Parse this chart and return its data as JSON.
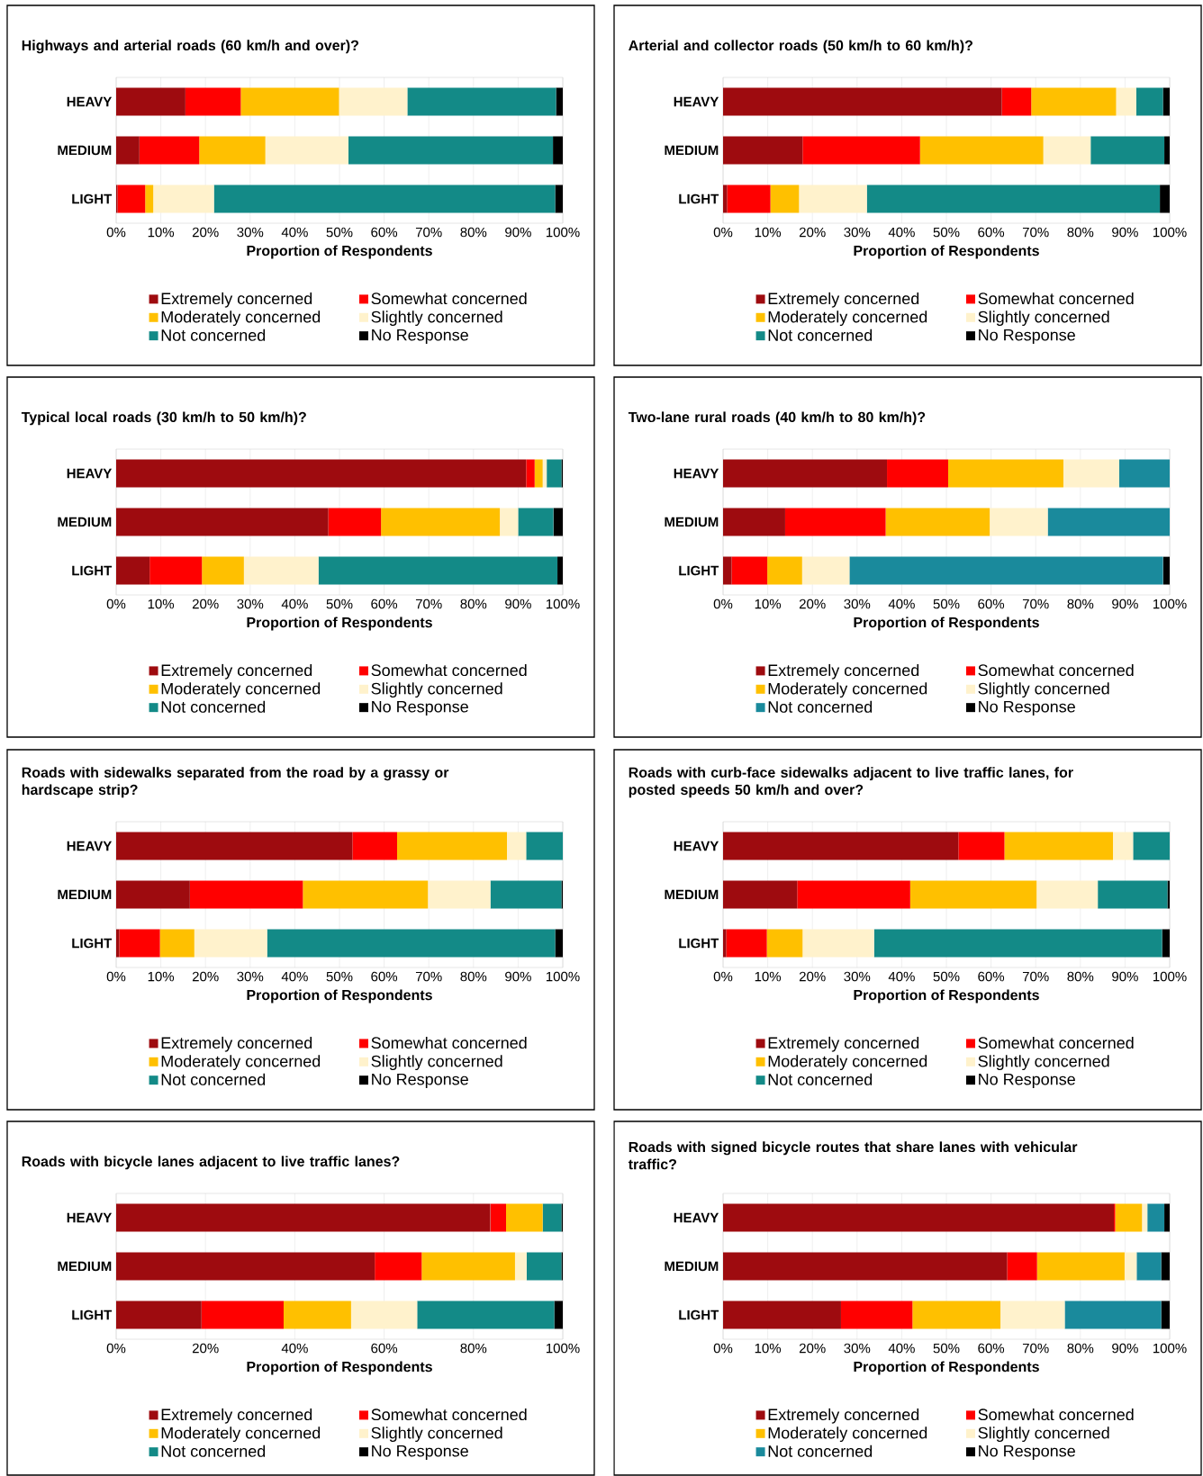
{
  "chart_data": [
    {
      "type": "bar",
      "orientation": "horizontal",
      "stacked": true,
      "title": "Highways and arterial roads (60 km/h and over)?",
      "categories": [
        "HEAVY",
        "MEDIUM",
        "LIGHT"
      ],
      "xlabel": "Proportion of Respondents",
      "xlim": [
        0,
        100
      ],
      "xticks": [
        {
          "value": 0,
          "label": "0%"
        },
        {
          "value": 10,
          "label": "10%"
        },
        {
          "value": 20,
          "label": "20%"
        },
        {
          "value": 30,
          "label": "30%"
        },
        {
          "value": 40,
          "label": "40%"
        },
        {
          "value": 50,
          "label": "50%"
        },
        {
          "value": 60,
          "label": "60%"
        },
        {
          "value": 70,
          "label": "70%"
        },
        {
          "value": 80,
          "label": "80%"
        },
        {
          "value": 90,
          "label": "90%"
        },
        {
          "value": 100,
          "label": "100%"
        }
      ],
      "grid": "x",
      "legend": "bottom",
      "series": [
        {
          "name": "Extremely concerned",
          "color": "#9e0b0f",
          "values": [
            15.5,
            5.2,
            0.3
          ]
        },
        {
          "name": "Somewhat concerned",
          "color": "#ff0000",
          "values": [
            12.4,
            13.4,
            6.2
          ]
        },
        {
          "name": "Moderately concerned",
          "color": "#ffc000",
          "values": [
            22,
            14.8,
            1.8
          ]
        },
        {
          "name": "Slightly concerned",
          "color": "#fff2cc",
          "values": [
            15.3,
            18.6,
            13.6
          ]
        },
        {
          "name": "Not concerned",
          "color": "#138a87",
          "values": [
            33.3,
            45.8,
            76.4
          ]
        },
        {
          "name": "No Response",
          "color": "#000000",
          "values": [
            1.5,
            2.2,
            1.7
          ]
        }
      ]
    },
    {
      "type": "bar",
      "orientation": "horizontal",
      "stacked": true,
      "title": "Arterial and collector roads (50 km/h to 60 km/h)?",
      "categories": [
        "HEAVY",
        "MEDIUM",
        "LIGHT"
      ],
      "xlabel": "Proportion of Respondents",
      "xlim": [
        0,
        100
      ],
      "xticks": [
        {
          "value": 0,
          "label": "0%"
        },
        {
          "value": 10,
          "label": "10%"
        },
        {
          "value": 20,
          "label": "20%"
        },
        {
          "value": 30,
          "label": "30%"
        },
        {
          "value": 40,
          "label": "40%"
        },
        {
          "value": 50,
          "label": "50%"
        },
        {
          "value": 60,
          "label": "60%"
        },
        {
          "value": 70,
          "label": "70%"
        },
        {
          "value": 80,
          "label": "80%"
        },
        {
          "value": 90,
          "label": "90%"
        },
        {
          "value": 100,
          "label": "100%"
        }
      ],
      "grid": "x",
      "legend": "bottom",
      "series": [
        {
          "name": "Extremely concerned",
          "color": "#9e0b0f",
          "values": [
            62.4,
            17.8,
            0.9
          ]
        },
        {
          "name": "Somewhat concerned",
          "color": "#ff0000",
          "values": [
            6.6,
            26.3,
            9.7
          ]
        },
        {
          "name": "Moderately concerned",
          "color": "#ffc000",
          "values": [
            19,
            27.6,
            6.4
          ]
        },
        {
          "name": "Slightly concerned",
          "color": "#fff2cc",
          "values": [
            4.5,
            10.6,
            15.2
          ]
        },
        {
          "name": "Not concerned",
          "color": "#138a87",
          "values": [
            6,
            16.5,
            65.6
          ]
        },
        {
          "name": "No Response",
          "color": "#000000",
          "values": [
            1.5,
            1.2,
            2.2
          ]
        }
      ]
    },
    {
      "type": "bar",
      "orientation": "horizontal",
      "stacked": true,
      "title": "Typical local roads (30 km/h to 50 km/h)?",
      "categories": [
        "HEAVY",
        "MEDIUM",
        "LIGHT"
      ],
      "xlabel": "Proportion of Respondents",
      "xlim": [
        0,
        100
      ],
      "xticks": [
        {
          "value": 0,
          "label": "0%"
        },
        {
          "value": 10,
          "label": "10%"
        },
        {
          "value": 20,
          "label": "20%"
        },
        {
          "value": 30,
          "label": "30%"
        },
        {
          "value": 40,
          "label": "40%"
        },
        {
          "value": 50,
          "label": "50%"
        },
        {
          "value": 60,
          "label": "60%"
        },
        {
          "value": 70,
          "label": "70%"
        },
        {
          "value": 80,
          "label": "80%"
        },
        {
          "value": 90,
          "label": "90%"
        },
        {
          "value": 100,
          "label": "100%"
        }
      ],
      "grid": "x",
      "legend": "bottom",
      "series": [
        {
          "name": "Extremely concerned",
          "color": "#9e0b0f",
          "values": [
            91.8,
            47.5,
            7.5
          ]
        },
        {
          "name": "Somewhat concerned",
          "color": "#ff0000",
          "values": [
            1.9,
            11.8,
            11.7
          ]
        },
        {
          "name": "Moderately concerned",
          "color": "#ffc000",
          "values": [
            1.8,
            26.6,
            9.4
          ]
        },
        {
          "name": "Slightly concerned",
          "color": "#fff2cc",
          "values": [
            0.9,
            4.1,
            16.7
          ]
        },
        {
          "name": "Not concerned",
          "color": "#138a87",
          "values": [
            3.3,
            7.9,
            53.5
          ]
        },
        {
          "name": "No Response",
          "color": "#000000",
          "values": [
            0.3,
            2.1,
            1.2
          ]
        }
      ]
    },
    {
      "type": "bar",
      "orientation": "horizontal",
      "stacked": true,
      "title": "Two-lane rural roads (40 km/h to 80 km/h)?",
      "categories": [
        "HEAVY",
        "MEDIUM",
        "LIGHT"
      ],
      "xlabel": "Proportion of Respondents",
      "xlim": [
        0,
        100
      ],
      "xticks": [
        {
          "value": 0,
          "label": "0%"
        },
        {
          "value": 10,
          "label": "10%"
        },
        {
          "value": 20,
          "label": "20%"
        },
        {
          "value": 30,
          "label": "30%"
        },
        {
          "value": 40,
          "label": "40%"
        },
        {
          "value": 50,
          "label": "50%"
        },
        {
          "value": 60,
          "label": "60%"
        },
        {
          "value": 70,
          "label": "70%"
        },
        {
          "value": 80,
          "label": "80%"
        },
        {
          "value": 90,
          "label": "90%"
        },
        {
          "value": 100,
          "label": "100%"
        }
      ],
      "grid": "x",
      "legend": "bottom",
      "series": [
        {
          "name": "Extremely concerned",
          "color": "#9e0b0f",
          "values": [
            36.7,
            13.9,
            1.9
          ]
        },
        {
          "name": "Somewhat concerned",
          "color": "#ff0000",
          "values": [
            13.7,
            22.5,
            8
          ]
        },
        {
          "name": "Moderately concerned",
          "color": "#ffc000",
          "values": [
            25.8,
            23.3,
            7.8
          ]
        },
        {
          "name": "Slightly concerned",
          "color": "#fff2cc",
          "values": [
            12.5,
            13,
            10.6
          ]
        },
        {
          "name": "Not concerned",
          "color": "#1a8a9c",
          "values": [
            11.3,
            27.3,
            70.2
          ]
        },
        {
          "name": "No Response",
          "color": "#000000",
          "values": [
            0,
            0,
            1.5
          ]
        }
      ]
    },
    {
      "type": "bar",
      "orientation": "horizontal",
      "stacked": true,
      "title": "Roads with sidewalks separated from the road by a grassy or hardscape strip?",
      "categories": [
        "HEAVY",
        "MEDIUM",
        "LIGHT"
      ],
      "xlabel": "Proportion of Respondents",
      "xlim": [
        0,
        100
      ],
      "xticks": [
        {
          "value": 0,
          "label": "0%"
        },
        {
          "value": 10,
          "label": "10%"
        },
        {
          "value": 20,
          "label": "20%"
        },
        {
          "value": 30,
          "label": "30%"
        },
        {
          "value": 40,
          "label": "40%"
        },
        {
          "value": 50,
          "label": "50%"
        },
        {
          "value": 60,
          "label": "60%"
        },
        {
          "value": 70,
          "label": "70%"
        },
        {
          "value": 80,
          "label": "80%"
        },
        {
          "value": 90,
          "label": "90%"
        },
        {
          "value": 100,
          "label": "100%"
        }
      ],
      "grid": "x",
      "legend": "bottom",
      "series": [
        {
          "name": "Extremely concerned",
          "color": "#9e0b0f",
          "values": [
            52.9,
            16.5,
            0.7
          ]
        },
        {
          "name": "Somewhat concerned",
          "color": "#ff0000",
          "values": [
            10,
            25.3,
            9.1
          ]
        },
        {
          "name": "Moderately concerned",
          "color": "#ffc000",
          "values": [
            24.6,
            28,
            7.7
          ]
        },
        {
          "name": "Slightly concerned",
          "color": "#fff2cc",
          "values": [
            4.3,
            14,
            16.3
          ]
        },
        {
          "name": "Not concerned",
          "color": "#138a87",
          "values": [
            8.2,
            15.9,
            64.5
          ]
        },
        {
          "name": "No Response",
          "color": "#000000",
          "values": [
            0,
            0.3,
            1.7
          ]
        }
      ]
    },
    {
      "type": "bar",
      "orientation": "horizontal",
      "stacked": true,
      "title": "Roads with curb-face sidewalks adjacent to live traffic lanes, for posted speeds 50 km/h and over?",
      "categories": [
        "HEAVY",
        "MEDIUM",
        "LIGHT"
      ],
      "xlabel": "Proportion of Respondents",
      "xlim": [
        0,
        100
      ],
      "xticks": [
        {
          "value": 0,
          "label": "0%"
        },
        {
          "value": 10,
          "label": "10%"
        },
        {
          "value": 20,
          "label": "20%"
        },
        {
          "value": 30,
          "label": "30%"
        },
        {
          "value": 40,
          "label": "40%"
        },
        {
          "value": 50,
          "label": "50%"
        },
        {
          "value": 60,
          "label": "60%"
        },
        {
          "value": 70,
          "label": "70%"
        },
        {
          "value": 80,
          "label": "80%"
        },
        {
          "value": 90,
          "label": "90%"
        },
        {
          "value": 100,
          "label": "100%"
        }
      ],
      "grid": "x",
      "legend": "bottom",
      "series": [
        {
          "name": "Extremely concerned",
          "color": "#9e0b0f",
          "values": [
            52.7,
            16.6,
            0.7
          ]
        },
        {
          "name": "Somewhat concerned",
          "color": "#ff0000",
          "values": [
            10.3,
            25.3,
            9.1
          ]
        },
        {
          "name": "Moderately concerned",
          "color": "#ffc000",
          "values": [
            24.3,
            28.3,
            8
          ]
        },
        {
          "name": "Slightly concerned",
          "color": "#fff2cc",
          "values": [
            4.5,
            13.7,
            16
          ]
        },
        {
          "name": "Not concerned",
          "color": "#138a87",
          "values": [
            8.2,
            15.6,
            64.5
          ]
        },
        {
          "name": "No Response",
          "color": "#000000",
          "values": [
            0,
            0.5,
            1.7
          ]
        }
      ]
    },
    {
      "type": "bar",
      "orientation": "horizontal",
      "stacked": true,
      "title": "Roads with bicycle lanes adjacent to live traffic lanes?",
      "categories": [
        "HEAVY",
        "MEDIUM",
        "LIGHT"
      ],
      "xlabel": "Proportion of Respondents",
      "xlim": [
        0,
        100
      ],
      "xticks": [
        {
          "value": 0,
          "label": "0%"
        },
        {
          "value": 20,
          "label": "20%"
        },
        {
          "value": 40,
          "label": "40%"
        },
        {
          "value": 60,
          "label": "60%"
        },
        {
          "value": 80,
          "label": "80%"
        },
        {
          "value": 100,
          "label": "100%"
        }
      ],
      "grid": "x",
      "legend": "bottom",
      "series": [
        {
          "name": "Extremely concerned",
          "color": "#9e0b0f",
          "values": [
            83.8,
            57.9,
            19.1
          ]
        },
        {
          "name": "Somewhat concerned",
          "color": "#ff0000",
          "values": [
            3.5,
            10.5,
            18.4
          ]
        },
        {
          "name": "Moderately concerned",
          "color": "#ffc000",
          "values": [
            8.2,
            20.9,
            15.1
          ]
        },
        {
          "name": "Slightly concerned",
          "color": "#fff2cc",
          "values": [
            null,
            2.6,
            14.8
          ]
        },
        {
          "name": "Not concerned",
          "color": "#138a87",
          "values": [
            4.2,
            7.8,
            30.7
          ]
        },
        {
          "name": "No Response",
          "color": "#000000",
          "values": [
            0.3,
            0.3,
            1.9
          ]
        }
      ]
    },
    {
      "type": "bar",
      "orientation": "horizontal",
      "stacked": true,
      "title": "Roads with signed bicycle routes that share lanes with vehicular traffic?",
      "categories": [
        "HEAVY",
        "MEDIUM",
        "LIGHT"
      ],
      "xlabel": "Proportion of Respondents",
      "xlim": [
        0,
        100
      ],
      "xticks": [
        {
          "value": 0,
          "label": "0%"
        },
        {
          "value": 10,
          "label": "10%"
        },
        {
          "value": 20,
          "label": "20%"
        },
        {
          "value": 30,
          "label": "30%"
        },
        {
          "value": 40,
          "label": "40%"
        },
        {
          "value": 50,
          "label": "50%"
        },
        {
          "value": 60,
          "label": "60%"
        },
        {
          "value": 70,
          "label": "70%"
        },
        {
          "value": 80,
          "label": "80%"
        },
        {
          "value": 90,
          "label": "90%"
        },
        {
          "value": 100,
          "label": "100%"
        }
      ],
      "grid": "x",
      "legend": "bottom",
      "series": [
        {
          "name": "Extremely concerned",
          "color": "#9e0b0f",
          "values": [
            87.5,
            63.6,
            26.4
          ]
        },
        {
          "name": "Somewhat concerned",
          "color": "#ff0000",
          "values": [
            0.3,
            6.7,
            16
          ]
        },
        {
          "name": "Moderately concerned",
          "color": "#ffc000",
          "values": [
            6,
            19.6,
            19.7
          ]
        },
        {
          "name": "Slightly concerned",
          "color": "#fff2cc",
          "values": [
            1.2,
            2.7,
            14.4
          ]
        },
        {
          "name": "Not concerned",
          "color": "#1a8a9c",
          "values": [
            3.8,
            5.5,
            21.6
          ]
        },
        {
          "name": "No Response",
          "color": "#000000",
          "values": [
            1.2,
            1.9,
            1.9
          ]
        }
      ]
    }
  ]
}
